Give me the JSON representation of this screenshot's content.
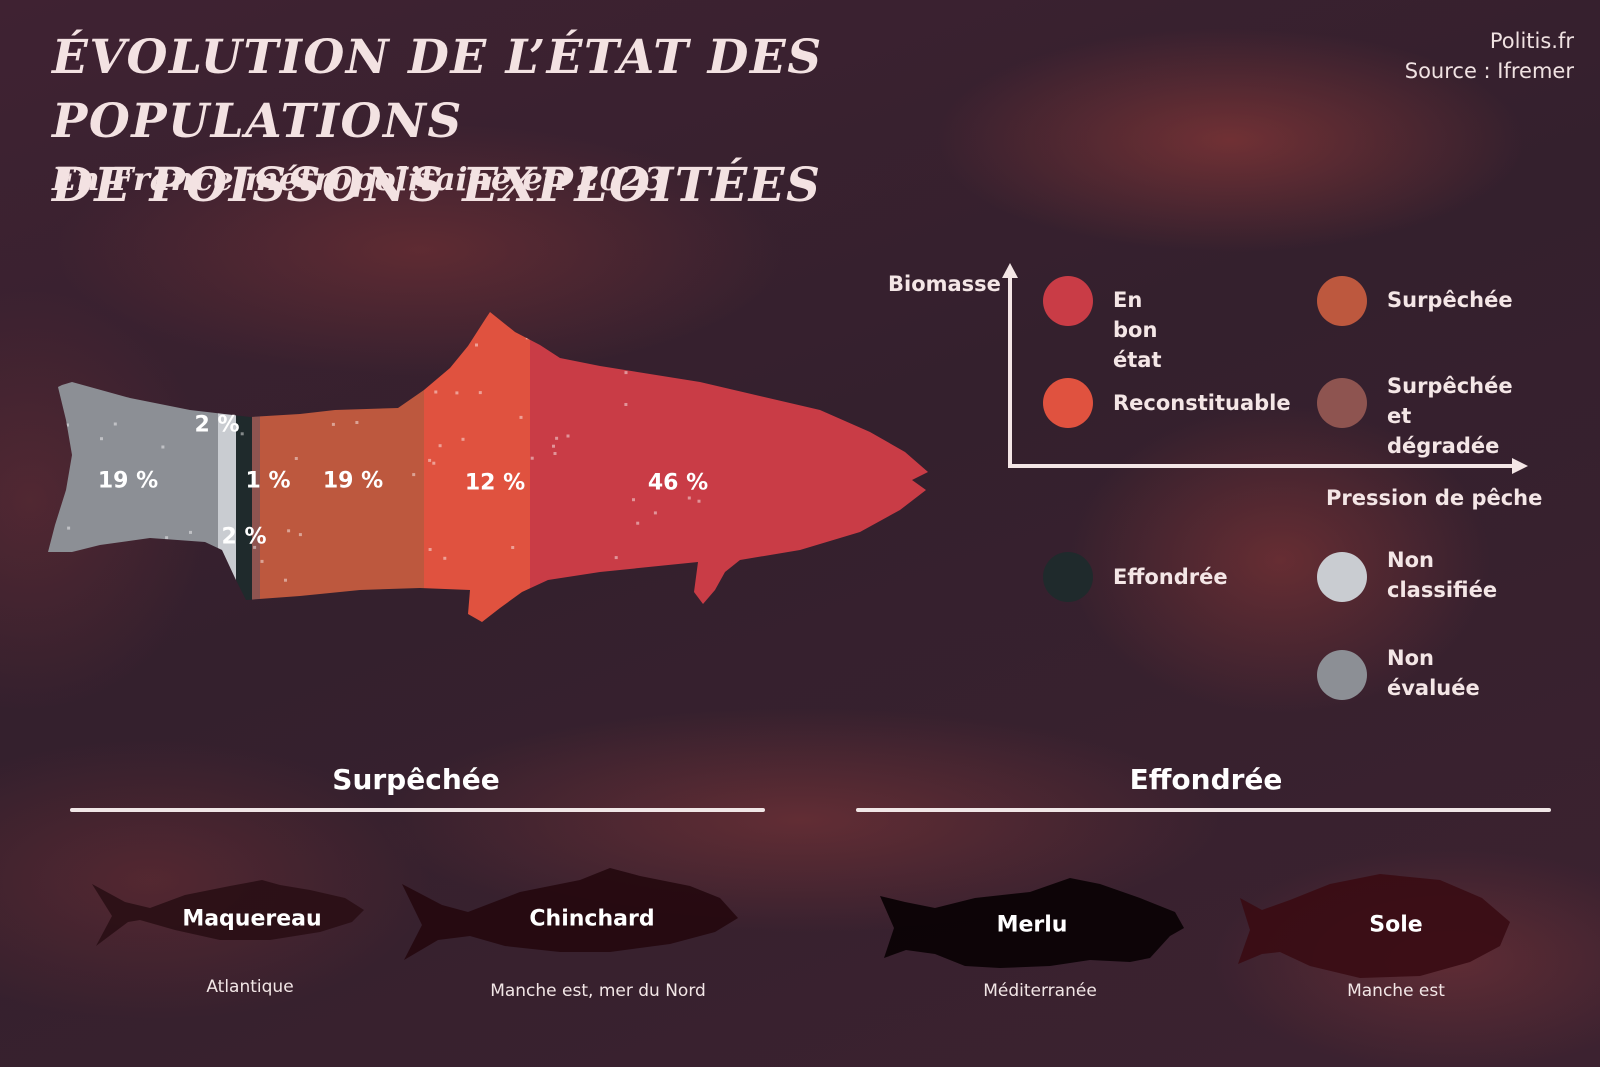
{
  "header": {
    "title_line1": "Évolution de l’état des populations",
    "title_line2": "de poissons exploitées",
    "subtitle": "En France métropolitaine en 2023",
    "credit": "Politis.fr",
    "source": "Source : Ifremer"
  },
  "chart_data": {
    "type": "bar",
    "title": "Évolution de l’état des populations de poissons exploitées",
    "subtitle": "En France métropolitaine en 2023",
    "orientation": "horizontal-stacked-100",
    "categories": [
      "Non évaluée",
      "Non classifiée",
      "Effondrée",
      "Surpêchée et dégradée",
      "Surpêchée",
      "Reconstituable",
      "En bon état"
    ],
    "values": [
      19,
      2,
      2,
      1,
      19,
      12,
      46
    ],
    "value_labels": [
      "19 %",
      "2 %",
      "2 %",
      "1 %",
      "19 %",
      "12 %",
      "46 %"
    ],
    "colors": [
      "#8c8f95",
      "#c9ccd1",
      "#1f2a2c",
      "#8e5450",
      "#bd583e",
      "#e0523f",
      "#c93c46"
    ],
    "unit": "%"
  },
  "legend": {
    "y_axis_label": "Biomasse",
    "x_axis_label": "Pression de pêche",
    "items": [
      {
        "key": "bon",
        "label": "En bon état",
        "color": "#c93c46"
      },
      {
        "key": "surpeche",
        "label": "Surpêchée",
        "color": "#bd583e"
      },
      {
        "key": "reconst",
        "label": "Reconstituable",
        "color": "#e0523f"
      },
      {
        "key": "degradee",
        "label": "Surpêchée\net dégradée",
        "color": "#8e5450"
      },
      {
        "key": "effondree",
        "label": "Effondrée",
        "color": "#1f2a2c"
      },
      {
        "key": "nonclass",
        "label": "Non\nclassifiée",
        "color": "#c9ccd1"
      },
      {
        "key": "noneval",
        "label": "Non\névaluée",
        "color": "#8c8f95"
      }
    ]
  },
  "examples": {
    "surpechee": {
      "title": "Surpêchée",
      "species": [
        {
          "name": "Maquereau",
          "region": "Atlantique",
          "color": "#2a0f16"
        },
        {
          "name": "Chinchard",
          "region": "Manche est, mer du Nord",
          "color": "#25090f"
        }
      ]
    },
    "effondree": {
      "title": "Effondrée",
      "species": [
        {
          "name": "Merlu",
          "region": "Méditerranée",
          "color": "#0b0306"
        },
        {
          "name": "Sole",
          "region": "Manche est",
          "color": "#3a0c14"
        }
      ]
    }
  }
}
